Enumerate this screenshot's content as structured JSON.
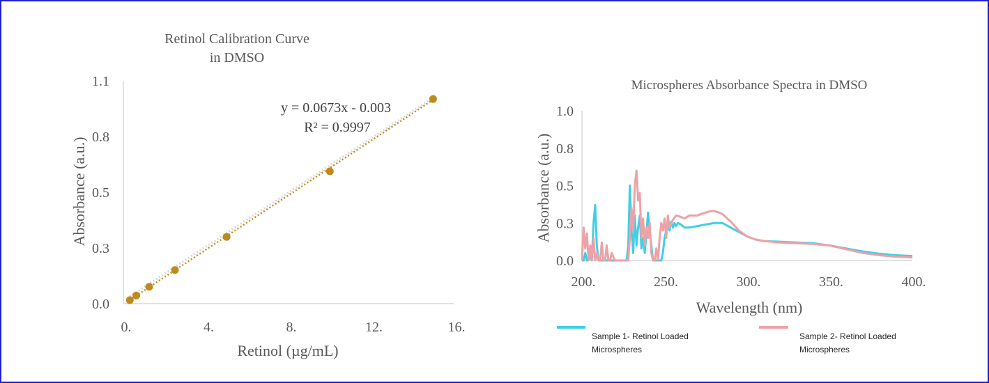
{
  "chart_data": [
    {
      "type": "scatter",
      "title_lines": [
        "Retinol Calibration Curve",
        "in DMSO"
      ],
      "xlabel": "Retinol (µg/mL)",
      "ylabel": "Absorbance (a.u.)",
      "xlim": [
        0,
        16
      ],
      "ylim": [
        0,
        1.1
      ],
      "x_ticks": [
        0,
        4,
        8,
        12,
        16
      ],
      "x_tick_labels": [
        "0.",
        "4.",
        "8.",
        "12.",
        "16."
      ],
      "y_ticks": [
        0,
        0.275,
        0.55,
        0.825,
        1.1
      ],
      "y_tick_labels": [
        "0.0",
        "0.3",
        "0.5",
        "0.8",
        "1.1"
      ],
      "points": [
        {
          "x": 0.3125,
          "y": 0.017
        },
        {
          "x": 0.625,
          "y": 0.04
        },
        {
          "x": 1.25,
          "y": 0.083
        },
        {
          "x": 2.5,
          "y": 0.166
        },
        {
          "x": 5,
          "y": 0.329
        },
        {
          "x": 10,
          "y": 0.653
        },
        {
          "x": 15,
          "y": 1.01
        }
      ],
      "trendline": {
        "slope": 0.0673,
        "intercept": -0.003
      },
      "equation": "y = 0.0673x - 0.003",
      "r_squared": "R² = 0.9997",
      "marker_color": "#bd8a1c",
      "trend_color": "#bd8a1c",
      "grid": false,
      "legend": "none"
    },
    {
      "type": "line",
      "title": "Microspheres Absorbance Spectra in DMSO",
      "xlabel": "Wavelength (nm)",
      "ylabel": "Absorbance (a.u.)",
      "xlim": [
        200,
        400
      ],
      "ylim": [
        0,
        1.0
      ],
      "x_ticks": [
        200,
        250,
        300,
        350,
        400
      ],
      "x_tick_labels": [
        "200.",
        "250.",
        "300.",
        "350.",
        "400."
      ],
      "y_ticks": [
        0,
        0.25,
        0.5,
        0.75,
        1.0
      ],
      "y_tick_labels": [
        "0.0",
        "0.3",
        "0.5",
        "0.8",
        "1.0"
      ],
      "grid": false,
      "legend": "bottom",
      "series": [
        {
          "name": "Sample 1- Retinol Loaded Microspheres",
          "color": "#3fcfe6",
          "x": [
            200,
            201,
            202,
            203,
            204,
            205,
            206,
            207,
            208,
            209,
            210,
            212,
            214,
            216,
            218,
            220,
            222,
            224,
            226,
            227,
            228,
            229,
            230,
            231,
            232,
            233,
            234,
            235,
            236,
            237,
            238,
            239,
            240,
            241,
            242,
            243,
            244,
            245,
            246,
            247,
            248,
            249,
            250,
            251,
            252,
            253,
            254,
            255,
            256,
            257,
            258,
            260,
            262,
            265,
            270,
            275,
            280,
            285,
            290,
            295,
            300,
            305,
            310,
            320,
            330,
            340,
            350,
            360,
            370,
            380,
            390,
            400
          ],
          "y": [
            0.0,
            0.0,
            0.05,
            0.0,
            0.0,
            0.03,
            0.0,
            0.25,
            0.37,
            0.1,
            0.0,
            0.0,
            0.0,
            0.0,
            0.0,
            0.0,
            0.0,
            0.0,
            0.0,
            0.0,
            0.1,
            0.5,
            0.2,
            0.05,
            0.3,
            0.1,
            0.22,
            0.3,
            0.08,
            0.15,
            0.05,
            0.18,
            0.32,
            0.2,
            0.1,
            0.0,
            0.0,
            0.0,
            0.0,
            0.0,
            0.0,
            0.05,
            0.15,
            0.2,
            0.24,
            0.2,
            0.26,
            0.22,
            0.25,
            0.23,
            0.25,
            0.24,
            0.22,
            0.22,
            0.23,
            0.24,
            0.25,
            0.25,
            0.22,
            0.19,
            0.16,
            0.14,
            0.13,
            0.125,
            0.12,
            0.115,
            0.1,
            0.08,
            0.06,
            0.045,
            0.035,
            0.03
          ]
        },
        {
          "name": "Sample 2- Retinol Loaded Microspheres",
          "color": "#eda2a7",
          "x": [
            200,
            201,
            202,
            203,
            204,
            205,
            206,
            207,
            208,
            209,
            210,
            211,
            212,
            213,
            214,
            215,
            216,
            217,
            218,
            220,
            222,
            224,
            226,
            228,
            229,
            230,
            231,
            232,
            233,
            234,
            235,
            236,
            237,
            238,
            239,
            240,
            241,
            242,
            243,
            244,
            245,
            246,
            247,
            248,
            249,
            250,
            251,
            252,
            253,
            255,
            257,
            260,
            262,
            265,
            268,
            270,
            272,
            275,
            278,
            280,
            283,
            285,
            290,
            295,
            300,
            305,
            310,
            320,
            330,
            340,
            350,
            360,
            370,
            380,
            390,
            400
          ],
          "y": [
            0.0,
            0.22,
            0.08,
            0.18,
            0.0,
            0.1,
            0.0,
            0.15,
            0.0,
            0.05,
            0.0,
            0.0,
            0.12,
            0.0,
            0.0,
            0.1,
            0.0,
            0.0,
            0.05,
            0.0,
            0.0,
            0.0,
            0.0,
            0.0,
            0.15,
            0.35,
            0.2,
            0.5,
            0.6,
            0.4,
            0.45,
            0.15,
            0.28,
            0.1,
            0.22,
            0.15,
            0.25,
            0.05,
            0.0,
            0.0,
            0.08,
            0.0,
            0.15,
            0.25,
            0.2,
            0.28,
            0.15,
            0.3,
            0.22,
            0.27,
            0.3,
            0.29,
            0.28,
            0.3,
            0.3,
            0.3,
            0.31,
            0.32,
            0.33,
            0.33,
            0.32,
            0.31,
            0.26,
            0.2,
            0.16,
            0.14,
            0.13,
            0.12,
            0.115,
            0.11,
            0.1,
            0.075,
            0.05,
            0.035,
            0.025,
            0.02
          ]
        }
      ]
    }
  ]
}
